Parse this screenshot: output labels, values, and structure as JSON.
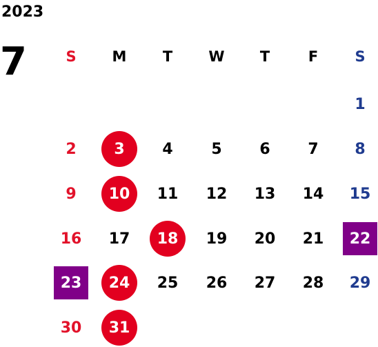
{
  "calendar": {
    "year": "2023",
    "month": "7",
    "weekdays": [
      "S",
      "M",
      "T",
      "W",
      "T",
      "F",
      "S"
    ],
    "weeks": [
      [
        "",
        "",
        "",
        "",
        "",
        "",
        "1"
      ],
      [
        "2",
        "3",
        "4",
        "5",
        "6",
        "7",
        "8"
      ],
      [
        "9",
        "10",
        "11",
        "12",
        "13",
        "14",
        "15"
      ],
      [
        "16",
        "17",
        "18",
        "19",
        "20",
        "21",
        "22"
      ],
      [
        "23",
        "24",
        "25",
        "26",
        "27",
        "28",
        "29"
      ],
      [
        "30",
        "31",
        "",
        "",
        "",
        "",
        ""
      ]
    ],
    "circled_holidays": [
      "3",
      "10",
      "18",
      "24",
      "31"
    ],
    "highlighted_days": [
      "22",
      "23"
    ]
  },
  "colors": {
    "sunday": "#e2122a",
    "saturday": "#1f3b8f",
    "weekday": "#000000",
    "circle_fill": "#e2001f",
    "highlight_fill": "#800088"
  }
}
